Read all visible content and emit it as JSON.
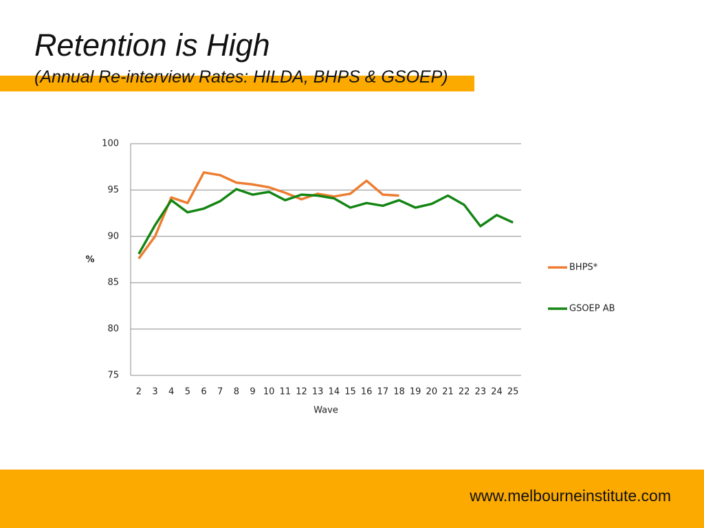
{
  "chart_data": {
    "type": "line",
    "title": "Retention is High",
    "subtitle": "(Annual Re-interview Rates: HILDA, BHPS & GSOEP)",
    "x_label": "Wave",
    "y_label": "%",
    "categories": [
      "2",
      "3",
      "4",
      "5",
      "6",
      "7",
      "8",
      "9",
      "10",
      "11",
      "12",
      "13",
      "14",
      "15",
      "16",
      "17",
      "18",
      "19",
      "20",
      "21",
      "22",
      "23",
      "24",
      "25"
    ],
    "series": [
      {
        "name": "BHPS*",
        "color": "#ed7d31",
        "values": [
          87.6,
          90.0,
          94.2,
          93.6,
          96.9,
          96.6,
          95.8,
          95.6,
          95.3,
          94.7,
          94.0,
          94.6,
          94.3,
          94.6,
          96.0,
          94.5,
          94.4,
          null,
          null,
          null,
          null,
          null,
          null,
          null
        ]
      },
      {
        "name": "GSOEP AB",
        "color": "#138513",
        "values": [
          88.1,
          91.2,
          93.9,
          92.6,
          93.0,
          93.8,
          95.1,
          94.5,
          94.8,
          93.9,
          94.5,
          94.4,
          94.1,
          93.1,
          93.6,
          93.3,
          93.9,
          93.1,
          93.5,
          94.4,
          93.4,
          91.1,
          92.3,
          91.5
        ]
      }
    ],
    "ylim": [
      75,
      100
    ],
    "yticks": [
      75,
      80,
      85,
      90,
      95,
      100
    ],
    "grid": true,
    "legend": "right"
  },
  "footer": {
    "url": "www.melbourneinstitute.com"
  }
}
